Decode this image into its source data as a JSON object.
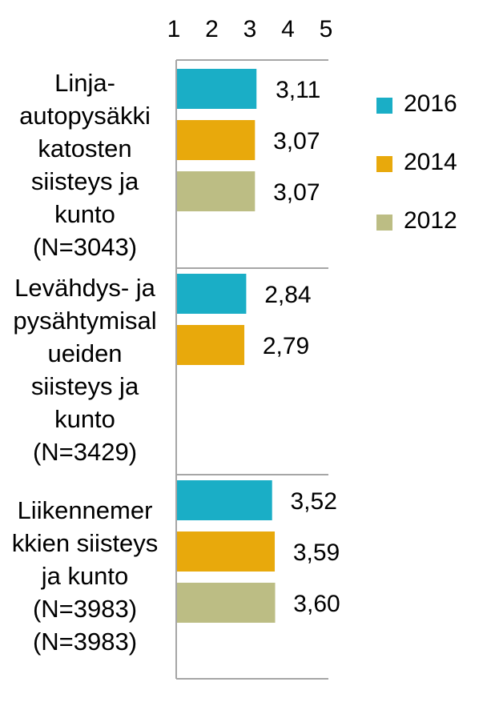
{
  "chart_data": {
    "type": "bar",
    "orientation": "horizontal",
    "title": "",
    "xlabel": "",
    "ylabel": "",
    "xlim": [
      1,
      5
    ],
    "x_ticks": [
      "1",
      "2",
      "3",
      "4",
      "5"
    ],
    "x_axis_position": "top",
    "grid": false,
    "legend_position": "right",
    "categories": [
      {
        "lines": [
          "Linja-",
          "autopysäkki",
          "katosten",
          "siisteys ja",
          "kunto",
          "(N=3043)"
        ]
      },
      {
        "lines": [
          "Levähdys- ja",
          "pysähtymisal",
          "ueiden",
          "siisteys ja",
          "kunto",
          "(N=3429)"
        ]
      },
      {
        "lines": [
          "Liikennemer",
          "kkien siisteys",
          "ja kunto",
          "(N=3983)",
          "(N=3983)"
        ]
      }
    ],
    "series": [
      {
        "name": "2016",
        "color": "#1aaec6",
        "values": [
          3.11,
          2.84,
          3.52
        ],
        "labels": [
          "3,11",
          "2,84",
          "3,52"
        ]
      },
      {
        "name": "2014",
        "color": "#e8a90c",
        "values": [
          3.07,
          2.79,
          3.59
        ],
        "labels": [
          "3,07",
          "2,79",
          "3,59"
        ]
      },
      {
        "name": "2012",
        "color": "#bcbd84",
        "values": [
          3.07,
          null,
          3.6
        ],
        "labels": [
          "3,07",
          null,
          "3,60"
        ]
      }
    ]
  }
}
